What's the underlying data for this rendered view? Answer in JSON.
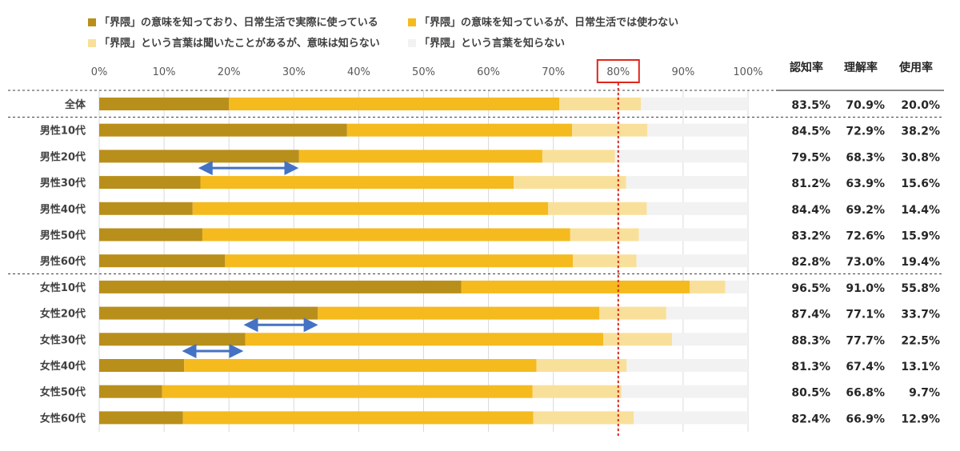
{
  "chart_data": {
    "type": "bar",
    "orientation": "horizontal",
    "stacked": true,
    "x_ticks": [
      "0%",
      "10%",
      "20%",
      "30%",
      "40%",
      "50%",
      "60%",
      "70%",
      "80%",
      "90%",
      "100%"
    ],
    "xlim": [
      0,
      100
    ],
    "highlight_line": {
      "value": 80,
      "label": "80%"
    },
    "categories": [
      "全体",
      "男性10代",
      "男性20代",
      "男性30代",
      "男性40代",
      "男性50代",
      "男性60代",
      "女性10代",
      "女性20代",
      "女性30代",
      "女性40代",
      "女性50代",
      "女性60代"
    ],
    "series": [
      {
        "name": "「界隈」の意味を知っており、日常生活で実際に使っている",
        "color": "#B98F1B",
        "values": [
          20.0,
          38.2,
          30.8,
          15.6,
          14.4,
          15.9,
          19.4,
          55.8,
          33.7,
          22.5,
          13.1,
          9.7,
          12.9
        ]
      },
      {
        "name": "「界隈」の意味を知っているが、日常生活では使わない",
        "color": "#F5BA1E",
        "values": [
          50.9,
          34.7,
          37.5,
          48.3,
          54.8,
          56.7,
          53.6,
          35.2,
          43.4,
          55.2,
          54.3,
          57.1,
          54.0
        ]
      },
      {
        "name": "「界隈」という言葉は聞いたことがあるが、意味は知らない",
        "color": "#F9E09A",
        "values": [
          12.6,
          11.6,
          11.2,
          17.3,
          15.2,
          10.6,
          9.8,
          5.5,
          10.3,
          10.6,
          13.9,
          13.7,
          15.5
        ]
      },
      {
        "name": "「界隈」という言葉を知らない",
        "color": "#F2F2F2",
        "values": [
          16.5,
          15.5,
          20.5,
          18.8,
          15.6,
          16.8,
          17.2,
          3.5,
          12.6,
          11.7,
          18.7,
          19.5,
          17.6
        ]
      }
    ],
    "table": {
      "headers": [
        "認知率",
        "理解率",
        "使用率"
      ],
      "rows": [
        [
          "83.5%",
          "70.9%",
          "20.0%"
        ],
        [
          "84.5%",
          "72.9%",
          "38.2%"
        ],
        [
          "79.5%",
          "68.3%",
          "30.8%"
        ],
        [
          "81.2%",
          "63.9%",
          "15.6%"
        ],
        [
          "84.4%",
          "69.2%",
          "14.4%"
        ],
        [
          "83.2%",
          "72.6%",
          "15.9%"
        ],
        [
          "82.8%",
          "73.0%",
          "19.4%"
        ],
        [
          "96.5%",
          "91.0%",
          "55.8%"
        ],
        [
          "87.4%",
          "77.1%",
          "33.7%"
        ],
        [
          "88.3%",
          "77.7%",
          "22.5%"
        ],
        [
          "81.3%",
          "67.4%",
          "13.1%"
        ],
        [
          "80.5%",
          "66.8%",
          "9.7%"
        ],
        [
          "82.4%",
          "66.9%",
          "12.9%"
        ]
      ]
    },
    "annotations": [
      {
        "type": "double-arrow",
        "category": "男性30代",
        "from": 16,
        "to": 30
      },
      {
        "type": "double-arrow",
        "category": "女性30代",
        "from": 23,
        "to": 33
      },
      {
        "type": "double-arrow",
        "category": "女性40代",
        "from": 13.5,
        "to": 21.5
      }
    ],
    "legend_position": "top",
    "grid": true
  }
}
